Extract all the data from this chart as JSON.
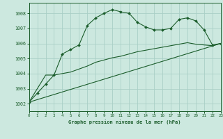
{
  "background_color": "#cce8df",
  "grid_color": "#aacfc6",
  "line_color": "#1a5c2a",
  "title": "Graphe pression niveau de la mer (hPa)",
  "xlim": [
    0,
    23
  ],
  "ylim": [
    1001.5,
    1008.7
  ],
  "yticks": [
    1002,
    1003,
    1004,
    1005,
    1006,
    1007,
    1008
  ],
  "xticks": [
    0,
    1,
    2,
    3,
    4,
    5,
    6,
    7,
    8,
    9,
    10,
    11,
    12,
    13,
    14,
    15,
    16,
    17,
    18,
    19,
    20,
    21,
    22,
    23
  ],
  "series1_x": [
    0,
    1,
    2,
    3,
    4,
    5,
    6,
    7,
    8,
    9,
    10,
    11,
    12,
    13,
    14,
    15,
    16,
    17,
    18,
    19,
    20,
    21,
    22,
    23
  ],
  "series1_y": [
    1002.1,
    1002.7,
    1003.3,
    1003.9,
    1005.3,
    1005.6,
    1005.9,
    1007.2,
    1007.7,
    1008.0,
    1008.25,
    1008.1,
    1008.0,
    1007.4,
    1007.1,
    1006.9,
    1006.9,
    1007.0,
    1007.6,
    1007.7,
    1007.5,
    1006.9,
    1005.9,
    1006.0
  ],
  "series2_x": [
    0,
    23
  ],
  "series2_y": [
    1002.1,
    1006.0
  ],
  "series3_x": [
    0,
    1,
    2,
    3,
    4,
    5,
    6,
    7,
    8,
    9,
    10,
    11,
    12,
    13,
    14,
    15,
    16,
    17,
    18,
    19,
    20,
    21,
    22,
    23
  ],
  "series3_y": [
    1002.1,
    1003.0,
    1003.9,
    1003.9,
    1004.0,
    1004.1,
    1004.3,
    1004.5,
    1004.75,
    1004.9,
    1005.05,
    1005.15,
    1005.3,
    1005.45,
    1005.55,
    1005.65,
    1005.75,
    1005.85,
    1005.95,
    1006.05,
    1005.95,
    1005.9,
    1005.85,
    1006.0
  ]
}
